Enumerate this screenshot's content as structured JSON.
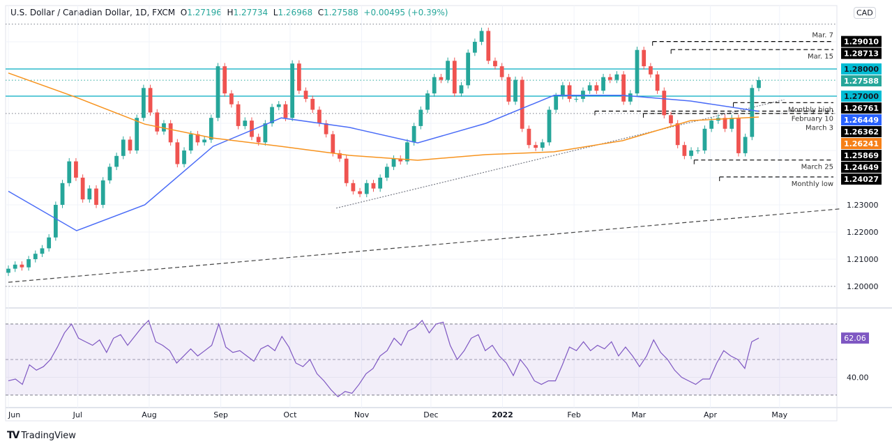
{
  "header": {
    "symbol": "U.S. Dollar / Canadian Dollar, 1D, FXCM",
    "open_label": "O",
    "open": "1.27196",
    "high_label": "H",
    "high": "1.27734",
    "low_label": "L",
    "low": "1.26968",
    "close_label": "C",
    "close": "1.27588",
    "change": "+0.00495 (+0.39%)"
  },
  "currency_badge": "CAD",
  "footer": {
    "brand": "TradingView"
  },
  "colors": {
    "up": "#26a69a",
    "down": "#ef5350",
    "ma_fast": "#4a6cf7",
    "ma_slow": "#f7931e",
    "rsi": "#7e57c2",
    "level": "#00acc1"
  },
  "chart_data": {
    "type": "candlestick",
    "x_range": [
      "2021-06-01",
      "2022-04-22"
    ],
    "ylim": [
      1.195,
      1.3
    ],
    "price_ticks": [
      "1.23000",
      "1.22000",
      "1.21000",
      "1.20000"
    ],
    "time_ticks": [
      {
        "label": "Jun",
        "date": "2021-06-01"
      },
      {
        "label": "Jul",
        "date": "2021-07-01"
      },
      {
        "label": "Aug",
        "date": "2021-08-01"
      },
      {
        "label": "Sep",
        "date": "2021-09-01"
      },
      {
        "label": "Oct",
        "date": "2021-10-01"
      },
      {
        "label": "Nov",
        "date": "2021-11-01"
      },
      {
        "label": "Dec",
        "date": "2021-12-01"
      },
      {
        "label": "2022",
        "date": "2022-01-01"
      },
      {
        "label": "Feb",
        "date": "2022-02-01"
      },
      {
        "label": "Mar",
        "date": "2022-03-01"
      },
      {
        "label": "Apr",
        "date": "2022-04-01"
      },
      {
        "label": "May",
        "date": "2022-05-01"
      }
    ],
    "closes": [
      1.2065,
      1.208,
      1.207,
      1.21,
      1.212,
      1.214,
      1.218,
      1.23,
      1.238,
      1.246,
      1.24,
      1.232,
      1.236,
      1.23,
      1.239,
      1.244,
      1.248,
      1.254,
      1.25,
      1.262,
      1.273,
      1.264,
      1.257,
      1.26,
      1.253,
      1.245,
      1.25,
      1.256,
      1.253,
      1.254,
      1.262,
      1.281,
      1.271,
      1.267,
      1.259,
      1.261,
      1.255,
      1.253,
      1.26,
      1.266,
      1.267,
      1.262,
      1.282,
      1.272,
      1.269,
      1.265,
      1.26,
      1.256,
      1.249,
      1.247,
      1.238,
      1.235,
      1.234,
      1.238,
      1.236,
      1.24,
      1.244,
      1.247,
      1.246,
      1.253,
      1.259,
      1.265,
      1.271,
      1.277,
      1.276,
      1.283,
      1.271,
      1.274,
      1.286,
      1.29,
      1.294,
      1.283,
      1.281,
      1.277,
      1.268,
      1.276,
      1.258,
      1.252,
      1.251,
      1.253,
      1.265,
      1.27,
      1.274,
      1.269,
      1.269,
      1.272,
      1.274,
      1.272,
      1.277,
      1.276,
      1.278,
      1.268,
      1.271,
      1.287,
      1.281,
      1.278,
      1.272,
      1.263,
      1.26,
      1.252,
      1.248,
      1.25,
      1.25,
      1.258,
      1.261,
      1.262,
      1.258,
      1.262,
      1.249,
      1.255,
      1.273,
      1.2759
    ],
    "ma_fast": [
      1.235,
      1.2205,
      1.23,
      1.2515,
      1.262,
      1.2585,
      1.2528,
      1.26,
      1.2703,
      1.2703,
      1.2682,
      1.2644
    ],
    "ma_slow": [
      1.2785,
      1.2695,
      1.2597,
      1.2546,
      1.2515,
      1.2482,
      1.2464,
      1.2485,
      1.2495,
      1.2536,
      1.261,
      1.2623
    ],
    "trendlines": [
      {
        "style": "dotted",
        "from": [
          "2021-10-21",
          1.2288
        ],
        "to": [
          "2022-05-03",
          1.2687
        ]
      },
      {
        "style": "dashed",
        "from": [
          "2021-06-01",
          1.2015
        ],
        "to": [
          "2022-05-27",
          1.2285
        ]
      }
    ],
    "levels": [
      {
        "price": 1.28,
        "style": "solid",
        "color": "#00acc1"
      },
      {
        "price": 1.27,
        "style": "solid",
        "color": "#00acc1"
      },
      {
        "price": 1.27588,
        "style": "dotted",
        "color": "#26a69a"
      },
      {
        "price": 1.2965,
        "style": "dotted",
        "color": "#787b86"
      },
      {
        "price": 1.26362,
        "style": "dotted",
        "color": "#787b86"
      },
      {
        "price": 1.2,
        "style": "dotted",
        "color": "#787b86"
      }
    ],
    "annotations": [
      {
        "label": "Mar. 7",
        "price": 1.2901,
        "from": "2022-03-07"
      },
      {
        "label": "Mar. 15",
        "price": 1.28713,
        "from": "2022-03-15"
      },
      {
        "label": "Monthly high",
        "price": 1.26761,
        "from": "2022-04-11"
      },
      {
        "label": "February 10",
        "price": 1.26449,
        "from": "2022-02-10"
      },
      {
        "label": "March 3",
        "price": 1.26362,
        "from": "2022-03-03"
      },
      {
        "label": "March 25",
        "price": 1.24649,
        "from": "2022-03-25"
      },
      {
        "label": "Monthly low",
        "price": 1.24027,
        "from": "2022-04-05"
      }
    ],
    "axis_labels": [
      {
        "text": "1.29010",
        "price": 1.2901,
        "bg": "#000000",
        "fg": "#ffffff"
      },
      {
        "text": "1.28713",
        "price": 1.28713,
        "bg": "#000000",
        "fg": "#ffffff"
      },
      {
        "text": "1.28000",
        "price": 1.28,
        "bg": "#00bcd4",
        "fg": "#131722"
      },
      {
        "text": "1.27588",
        "price": 1.27588,
        "bg": "#26a69a",
        "fg": "#ffffff"
      },
      {
        "text": "1.27000",
        "price": 1.27,
        "bg": "#00bcd4",
        "fg": "#131722"
      },
      {
        "text": "1.26761",
        "price": 1.26761,
        "bg": "#000000",
        "fg": "#ffffff"
      },
      {
        "text": "1.26449",
        "price": 1.26449,
        "bg": "#2962ff",
        "fg": "#ffffff"
      },
      {
        "text": "1.26362",
        "price": 1.26362,
        "bg": "#000000",
        "fg": "#ffffff"
      },
      {
        "text": "1.26241",
        "price": 1.26241,
        "bg": "#f57f17",
        "fg": "#ffffff"
      },
      {
        "text": "1.25869",
        "price": 1.25869,
        "bg": "#000000",
        "fg": "#ffffff"
      },
      {
        "text": "1.24649",
        "price": 1.24649,
        "bg": "#000000",
        "fg": "#ffffff"
      },
      {
        "text": "1.24027",
        "price": 1.24027,
        "bg": "#000000",
        "fg": "#ffffff"
      }
    ],
    "rsi": {
      "band": [
        30,
        70
      ],
      "mid": 50,
      "tick": "40.00",
      "last_label": "62.06",
      "values": [
        38,
        39,
        36,
        47,
        44,
        46,
        50,
        57,
        65,
        70,
        62,
        60,
        58,
        61,
        54,
        62,
        64,
        58,
        63,
        68,
        72,
        60,
        58,
        55,
        48,
        52,
        56,
        52,
        55,
        58,
        70,
        57,
        54,
        55,
        52,
        49,
        56,
        58,
        55,
        63,
        57,
        48,
        46,
        50,
        42,
        38,
        33,
        29,
        32,
        31,
        36,
        42,
        45,
        52,
        55,
        62,
        58,
        66,
        68,
        72,
        65,
        70,
        71,
        58,
        50,
        55,
        62,
        64,
        55,
        58,
        52,
        48,
        41,
        50,
        45,
        38,
        36,
        38,
        38,
        47,
        57,
        55,
        60,
        55,
        58,
        56,
        60,
        52,
        57,
        52,
        46,
        52,
        61,
        54,
        50,
        44,
        40,
        38,
        36,
        39,
        39,
        48,
        55,
        52,
        50,
        45,
        60,
        62.06
      ]
    }
  }
}
